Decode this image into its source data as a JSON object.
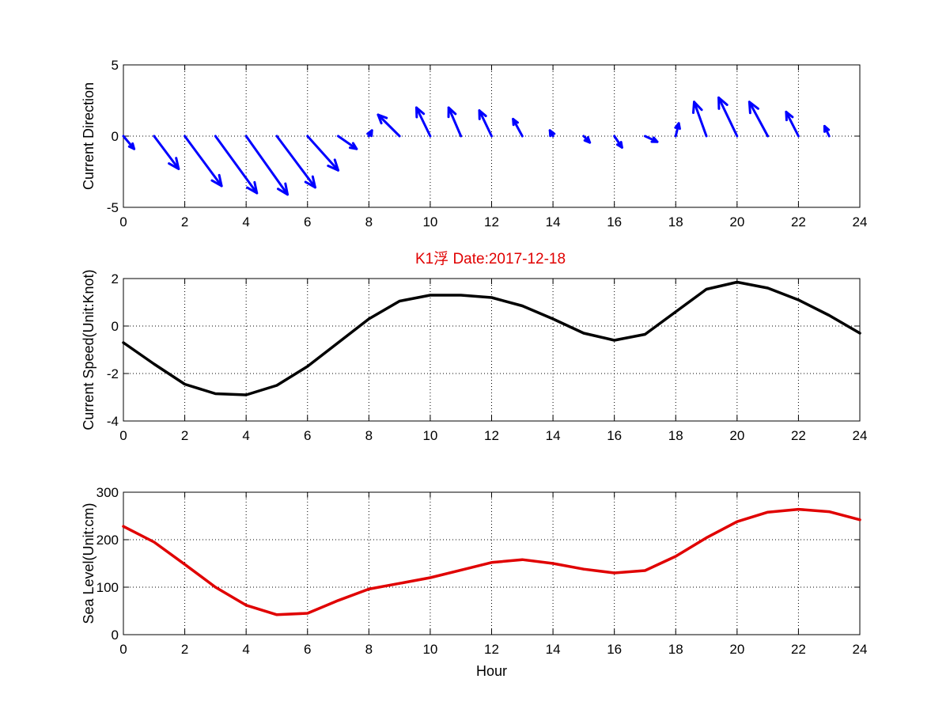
{
  "figure_title": "K1浮    Date:2017-12-18",
  "colors": {
    "title": "#e00000",
    "quiver": "#0000ff",
    "speed_line": "#000000",
    "sea_level_line": "#e00000",
    "grid": "#000000"
  },
  "chart_data": [
    {
      "type": "quiver",
      "title": "",
      "xlabel": "",
      "ylabel": "Current Direction",
      "xlim": [
        0,
        24
      ],
      "ylim": [
        -5,
        5
      ],
      "grid": true,
      "xticks": [
        "0",
        "2",
        "4",
        "6",
        "8",
        "10",
        "12",
        "14",
        "16",
        "18",
        "20",
        "22",
        "24"
      ],
      "yticks": [
        "-5",
        "0",
        "5"
      ],
      "arrows": [
        {
          "x": 0,
          "u": 0.35,
          "v": -0.9
        },
        {
          "x": 1,
          "u": 0.8,
          "v": -2.3
        },
        {
          "x": 2,
          "u": 1.2,
          "v": -3.5
        },
        {
          "x": 3,
          "u": 1.35,
          "v": -4.0
        },
        {
          "x": 4,
          "u": 1.35,
          "v": -4.1
        },
        {
          "x": 5,
          "u": 1.25,
          "v": -3.6
        },
        {
          "x": 6,
          "u": 1.0,
          "v": -2.4
        },
        {
          "x": 7,
          "u": 0.6,
          "v": -0.9
        },
        {
          "x": 8,
          "u": 0.1,
          "v": 0.4
        },
        {
          "x": 9,
          "u": -0.7,
          "v": 1.5
        },
        {
          "x": 10,
          "u": -0.45,
          "v": 2.0
        },
        {
          "x": 11,
          "u": -0.4,
          "v": 2.0
        },
        {
          "x": 12,
          "u": -0.4,
          "v": 1.8
        },
        {
          "x": 13,
          "u": -0.3,
          "v": 1.2
        },
        {
          "x": 14,
          "u": -0.1,
          "v": 0.4
        },
        {
          "x": 15,
          "u": 0.2,
          "v": -0.45
        },
        {
          "x": 16,
          "u": 0.25,
          "v": -0.8
        },
        {
          "x": 17,
          "u": 0.4,
          "v": -0.4
        },
        {
          "x": 18,
          "u": 0.1,
          "v": 0.9
        },
        {
          "x": 19,
          "u": -0.4,
          "v": 2.4
        },
        {
          "x": 20,
          "u": -0.6,
          "v": 2.7
        },
        {
          "x": 21,
          "u": -0.6,
          "v": 2.4
        },
        {
          "x": 22,
          "u": -0.4,
          "v": 1.7
        },
        {
          "x": 23,
          "u": -0.15,
          "v": 0.7
        }
      ]
    },
    {
      "type": "line",
      "title": "",
      "xlabel": "",
      "ylabel": "Current Speed(Unit:Knot)",
      "xlim": [
        0,
        24
      ],
      "ylim": [
        -4,
        2
      ],
      "grid": true,
      "xticks": [
        "0",
        "2",
        "4",
        "6",
        "8",
        "10",
        "12",
        "14",
        "16",
        "18",
        "20",
        "22",
        "24"
      ],
      "yticks": [
        "-4",
        "-2",
        "0",
        "2"
      ],
      "x": [
        0,
        1,
        2,
        3,
        4,
        5,
        6,
        7,
        8,
        9,
        10,
        11,
        12,
        13,
        14,
        15,
        16,
        17,
        18,
        19,
        20,
        21,
        22,
        23,
        24
      ],
      "values": [
        -0.7,
        -1.6,
        -2.45,
        -2.85,
        -2.9,
        -2.5,
        -1.7,
        -0.7,
        0.3,
        1.05,
        1.3,
        1.3,
        1.2,
        0.85,
        0.3,
        -0.3,
        -0.6,
        -0.35,
        0.6,
        1.55,
        1.85,
        1.6,
        1.1,
        0.45,
        -0.3
      ]
    },
    {
      "type": "line",
      "title": "",
      "xlabel": "Hour",
      "ylabel": "Sea Level(Unit:cm)",
      "xlim": [
        0,
        24
      ],
      "ylim": [
        0,
        300
      ],
      "grid": true,
      "xticks": [
        "0",
        "2",
        "4",
        "6",
        "8",
        "10",
        "12",
        "14",
        "16",
        "18",
        "20",
        "22",
        "24"
      ],
      "yticks": [
        "0",
        "100",
        "200",
        "300"
      ],
      "x": [
        0,
        1,
        2,
        3,
        4,
        5,
        6,
        7,
        8,
        9,
        10,
        11,
        12,
        13,
        14,
        15,
        16,
        17,
        18,
        19,
        20,
        21,
        22,
        23,
        24
      ],
      "values": [
        228,
        195,
        148,
        100,
        62,
        42,
        45,
        72,
        96,
        108,
        120,
        136,
        152,
        158,
        150,
        138,
        130,
        135,
        165,
        204,
        238,
        258,
        264,
        259,
        242
      ]
    }
  ]
}
